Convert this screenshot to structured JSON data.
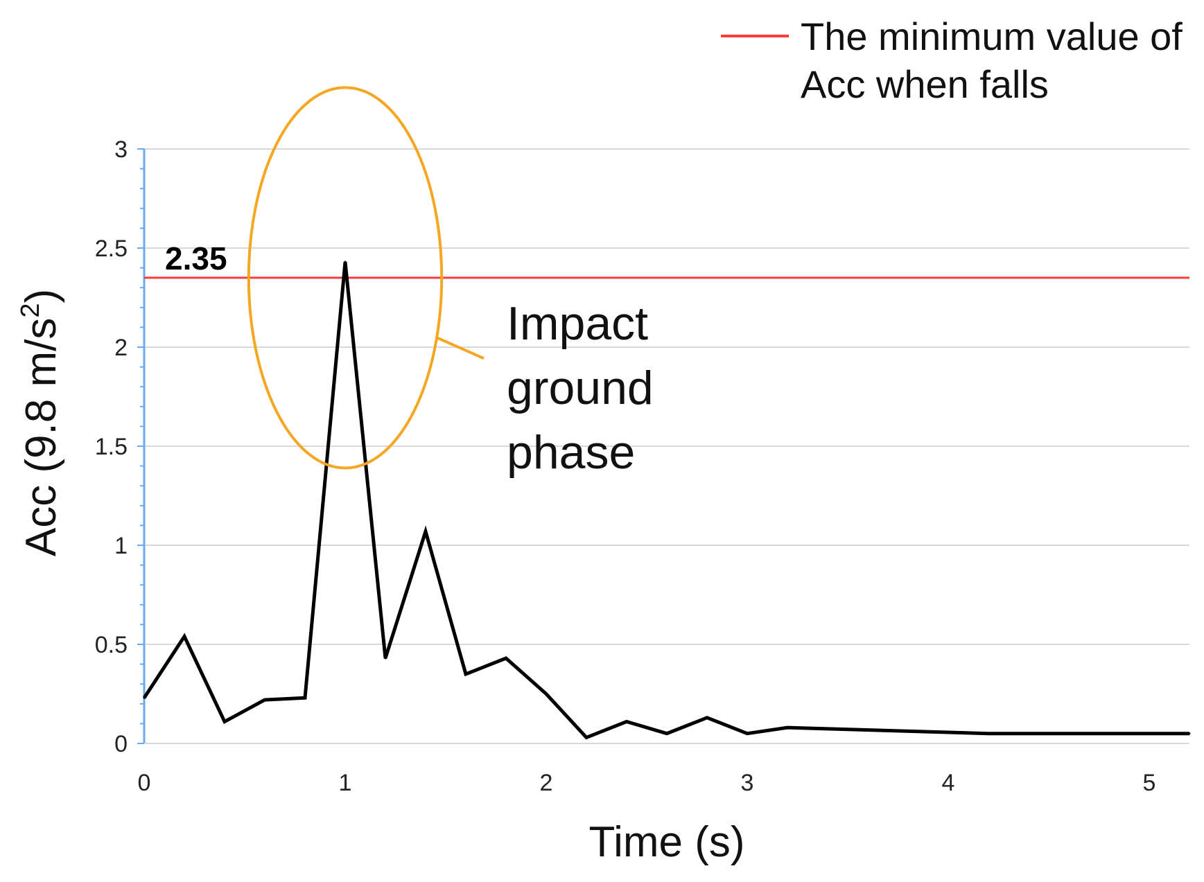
{
  "chart_data": {
    "type": "line",
    "title": "",
    "xlabel": "Time (s)",
    "ylabel_main": "Acc (9.8 m/s",
    "ylabel_sup": "2",
    "ylabel_close": ")",
    "xlim": [
      0,
      5.2
    ],
    "ylim": [
      0,
      3
    ],
    "x_ticks": [
      0,
      1,
      2,
      3,
      4,
      5
    ],
    "y_ticks": [
      0,
      0.5,
      1,
      1.5,
      2,
      2.5,
      3
    ],
    "x_tick_labels": [
      "0",
      "1",
      "2",
      "3",
      "4",
      "5"
    ],
    "y_tick_labels": [
      "0",
      "0.5",
      "1",
      "1.5",
      "2",
      "2.5",
      "3"
    ],
    "grid": true,
    "series": [
      {
        "name": "Acc",
        "color": "#000000",
        "x": [
          0,
          0.2,
          0.4,
          0.6,
          0.8,
          1.0,
          1.2,
          1.4,
          1.6,
          1.8,
          2.0,
          2.2,
          2.4,
          2.6,
          2.8,
          3.0,
          3.2,
          4.2,
          5.2
        ],
        "y": [
          0.23,
          0.54,
          0.11,
          0.22,
          0.23,
          2.43,
          0.43,
          1.07,
          0.35,
          0.43,
          0.25,
          0.03,
          0.11,
          0.05,
          0.13,
          0.05,
          0.08,
          0.05,
          0.05
        ]
      }
    ],
    "threshold": {
      "value": 2.35,
      "label": "2.35",
      "color": "#ff3b3b",
      "legend_line1": "The minimum value of",
      "legend_line2": "Acc when falls"
    },
    "annotation": {
      "center_x": 1.0,
      "center_y": 2.35,
      "rx": 0.48,
      "ry": 0.96,
      "color": "#f5a623",
      "text_lines": [
        "Impact",
        "ground",
        "phase"
      ]
    },
    "axis_color": "#6aa8f0",
    "grid_color": "#d9d9d9"
  }
}
